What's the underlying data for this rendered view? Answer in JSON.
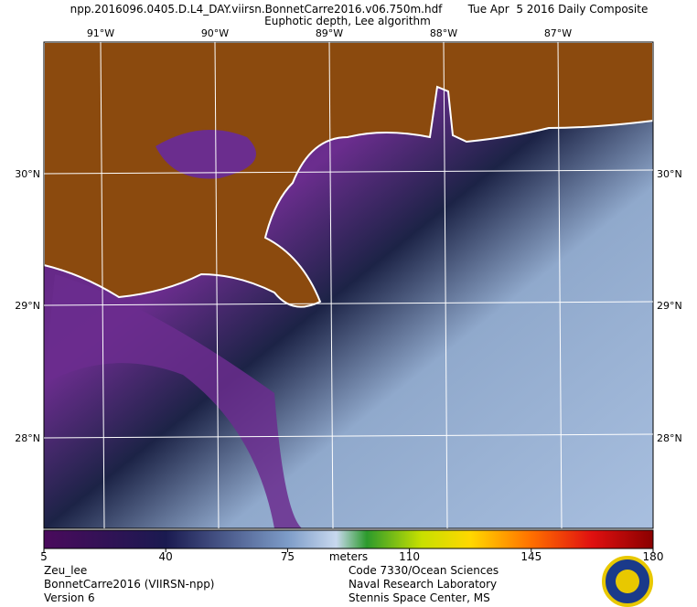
{
  "header": {
    "file": "npp.2016096.0405.D.L4_DAY.viirsn.BonnetCarre2016.v06.750m.hdf",
    "date": "Tue Apr  5 2016 Daily Composite",
    "product": "Euphotic depth, Lee algorithm"
  },
  "map": {
    "longitudes": [
      "91°W",
      "90°W",
      "89°W",
      "88°W",
      "87°W"
    ],
    "latitudes": [
      "30°N",
      "29°N",
      "28°N"
    ]
  },
  "colorbar": {
    "range": [
      5,
      180
    ],
    "ticks": [
      5,
      40,
      75,
      110,
      145,
      180
    ],
    "unit": "meters"
  },
  "footer": {
    "left": [
      "Zeu_lee",
      "BonnetCarre2016 (VIIRSN-npp)",
      "Version 6"
    ],
    "right": [
      "Code 7330/Ocean Sciences",
      "Naval Research Laboratory",
      "Stennis Space Center, MS"
    ]
  }
}
